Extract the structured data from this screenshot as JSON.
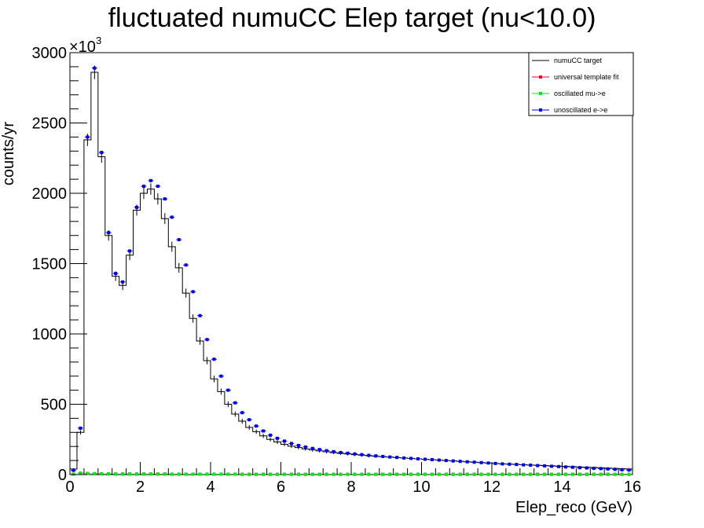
{
  "chart_data": {
    "type": "line",
    "title": "fluctuated numuCC Elep target (nu<10.0)",
    "xlabel": "Elep_reco (GeV)",
    "ylabel": "counts/yr",
    "y_multiplier": "×10",
    "y_multiplier_exp": "3",
    "xlim": [
      0,
      16
    ],
    "ylim": [
      0,
      3000
    ],
    "x_ticks": [
      "0",
      "2",
      "4",
      "6",
      "8",
      "10",
      "12",
      "14",
      "16"
    ],
    "y_ticks": [
      "0",
      "500",
      "1000",
      "1500",
      "2000",
      "2500",
      "3000"
    ],
    "bin_width": 0.2,
    "x_start": 0,
    "legend_position": "top-right",
    "colors": {
      "target": "#000000",
      "fit": "#e8002a",
      "oscillated": "#00e81c",
      "unoscillated": "#0000dd"
    },
    "series": [
      {
        "name": "numuCC target",
        "style": "step",
        "values": [
          40,
          300,
          2380,
          2860,
          2260,
          1700,
          1410,
          1345,
          1560,
          1880,
          2000,
          2030,
          1960,
          1820,
          1620,
          1470,
          1290,
          1110,
          950,
          810,
          680,
          590,
          500,
          430,
          380,
          335,
          305,
          275,
          250,
          232,
          215,
          202,
          192,
          182,
          175,
          168,
          162,
          156,
          151,
          147,
          142,
          138,
          134,
          130,
          127,
          124,
          121,
          118,
          115,
          112,
          109,
          106,
          103,
          100,
          97,
          94,
          91,
          88,
          85,
          82,
          79,
          76,
          74,
          72,
          70,
          68,
          66,
          64,
          62,
          60,
          58,
          56,
          54,
          52,
          50,
          48,
          46,
          44,
          42,
          40
        ]
      },
      {
        "name": "universal template fit",
        "style": "markers",
        "values": [
          3,
          10,
          8,
          6,
          5,
          5,
          4,
          4,
          4,
          4,
          4,
          4,
          4,
          4,
          3,
          3,
          3,
          3,
          3,
          3,
          3,
          3,
          3,
          3,
          2,
          2,
          2,
          2,
          2,
          2,
          2,
          2,
          2,
          2,
          2,
          2,
          2,
          2,
          2,
          2,
          2,
          2,
          2,
          2,
          2,
          2,
          2,
          2,
          2,
          2,
          2,
          2,
          2,
          2,
          2,
          2,
          2,
          2,
          2,
          2,
          2,
          2,
          2,
          2,
          2,
          2,
          2,
          2,
          2,
          2,
          2,
          2,
          2,
          2,
          2,
          2,
          2,
          2,
          2,
          2
        ]
      },
      {
        "name": "oscillated mu->e",
        "style": "markers",
        "values": [
          3,
          10,
          8,
          6,
          5,
          5,
          4,
          4,
          4,
          4,
          4,
          4,
          4,
          4,
          3,
          3,
          3,
          3,
          3,
          3,
          3,
          3,
          3,
          3,
          2,
          2,
          2,
          2,
          2,
          2,
          2,
          2,
          2,
          2,
          2,
          2,
          2,
          2,
          2,
          2,
          2,
          2,
          2,
          2,
          2,
          2,
          2,
          2,
          2,
          2,
          2,
          2,
          2,
          2,
          2,
          2,
          2,
          2,
          2,
          2,
          2,
          2,
          2,
          2,
          2,
          2,
          2,
          2,
          2,
          2,
          2,
          2,
          2,
          2,
          2,
          2,
          2,
          2,
          2,
          2
        ]
      },
      {
        "name": "unoscillated e->e",
        "style": "markers",
        "values": [
          30,
          330,
          2400,
          2890,
          2290,
          1720,
          1430,
          1370,
          1590,
          1900,
          2050,
          2090,
          2050,
          1960,
          1830,
          1670,
          1490,
          1300,
          1130,
          960,
          820,
          700,
          600,
          510,
          440,
          390,
          345,
          310,
          280,
          258,
          238,
          221,
          207,
          196,
          186,
          178,
          170,
          163,
          157,
          152,
          147,
          142,
          137,
          133,
          129,
          125,
          122,
          118,
          115,
          112,
          109,
          106,
          103,
          100,
          97,
          94,
          91,
          88,
          85,
          82,
          79,
          76,
          74,
          72,
          69,
          67,
          64,
          62,
          59,
          57,
          54,
          52,
          49,
          47,
          44,
          42,
          40,
          37,
          34,
          32
        ]
      }
    ]
  }
}
